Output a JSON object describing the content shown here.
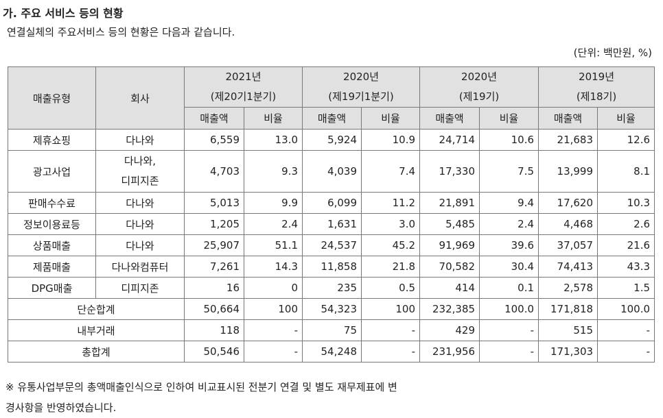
{
  "heading": "가. 주요 서비스 등의 현황",
  "intro": "연결실체의 주요서비스 등의 현황은 다음과 같습니다.",
  "unit": "(단위: 백만원, %)",
  "table": {
    "col_type": "매출유형",
    "col_company": "회사",
    "periods": [
      {
        "year": "2021년",
        "period": "(제20기1분기)"
      },
      {
        "year": "2020년",
        "period": "(제19기1분기)"
      },
      {
        "year": "2020년",
        "period": "(제19기)"
      },
      {
        "year": "2019년",
        "period": "(제18기)"
      }
    ],
    "sub_sales": "매출액",
    "sub_ratio": "비율",
    "rows": [
      {
        "type": "제휴쇼핑",
        "company": [
          "다나와"
        ],
        "vals": [
          "6,559",
          "13.0",
          "5,924",
          "10.9",
          "24,714",
          "10.6",
          "21,683",
          "12.6"
        ]
      },
      {
        "type": "광고사업",
        "company": [
          "다나와,",
          "디피지존"
        ],
        "vals": [
          "4,703",
          "9.3",
          "4,039",
          "7.4",
          "17,330",
          "7.5",
          "13,999",
          "8.1"
        ]
      },
      {
        "type": "판매수수료",
        "company": [
          "다나와"
        ],
        "vals": [
          "5,013",
          "9.9",
          "6,099",
          "11.2",
          "21,891",
          "9.4",
          "17,620",
          "10.3"
        ]
      },
      {
        "type": "정보이용료등",
        "company": [
          "다나와"
        ],
        "vals": [
          "1,205",
          "2.4",
          "1,631",
          "3.0",
          "5,485",
          "2.4",
          "4,468",
          "2.6"
        ]
      },
      {
        "type": "상품매출",
        "company": [
          "다나와"
        ],
        "vals": [
          "25,907",
          "51.1",
          "24,537",
          "45.2",
          "91,969",
          "39.6",
          "37,057",
          "21.6"
        ]
      },
      {
        "type": "제품매출",
        "company": [
          "다나와컴퓨터"
        ],
        "vals": [
          "7,261",
          "14.3",
          "11,858",
          "21.8",
          "70,582",
          "30.4",
          "74,413",
          "43.3"
        ]
      },
      {
        "type": "DPG매출",
        "company": [
          "디피지존"
        ],
        "vals": [
          "16",
          "0",
          "235",
          "0.5",
          "414",
          "0.1",
          "2,578",
          "1.5"
        ]
      }
    ],
    "totals": [
      {
        "label": "단순합계",
        "vals": [
          "50,664",
          "100",
          "54,323",
          "100",
          "232,385",
          "100.0",
          "171,818",
          "100.0"
        ]
      },
      {
        "label": "내부거래",
        "vals": [
          "118",
          "-",
          "75",
          "-",
          "429",
          "-",
          "515",
          "-"
        ]
      },
      {
        "label": "총합계",
        "vals": [
          "50,546",
          "-",
          "54,248",
          "-",
          "231,956",
          "-",
          "171,303",
          "-"
        ]
      }
    ]
  },
  "note_lines": [
    "※ 유통사업부문의 총액매출인식으로 인하여 비교표시된 전분기 연결 및 별도 재무제표에 변",
    "경사항을 반영하였습니다."
  ]
}
